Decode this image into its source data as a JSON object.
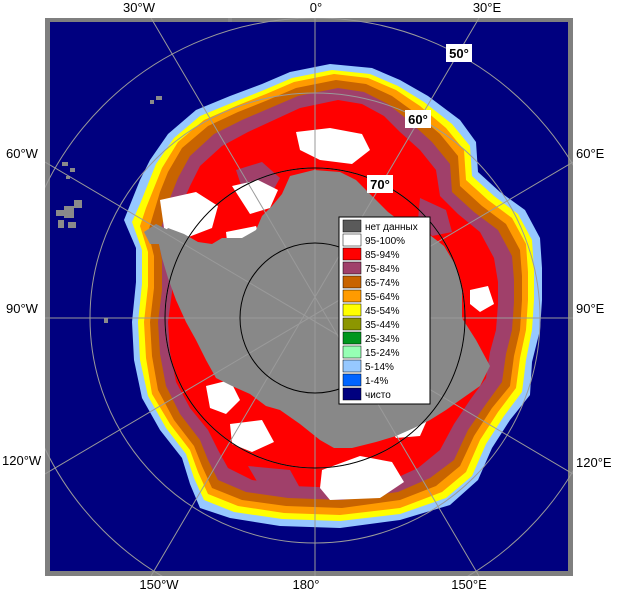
{
  "map": {
    "longitude_labels": {
      "top_left": "30°W",
      "top_center": "0°",
      "top_right": "30°E",
      "left_upper": "60°W",
      "left_middle": "90°W",
      "left_lower": "120°W",
      "right_upper": "60°E",
      "right_middle": "90°E",
      "right_lower": "120°E",
      "bottom_left": "150°W",
      "bottom_center": "180°",
      "bottom_right": "150°E"
    },
    "latitude_labels": [
      "50°",
      "60°",
      "70°"
    ]
  },
  "legend": {
    "items": [
      {
        "label": "нет данных",
        "color": "#5a5a5a"
      },
      {
        "label": "95-100%",
        "color": "#ffffff"
      },
      {
        "label": "85-94%",
        "color": "#ff0000"
      },
      {
        "label": "75-84%",
        "color": "#a0406a"
      },
      {
        "label": "65-74%",
        "color": "#c86400"
      },
      {
        "label": "55-64%",
        "color": "#ff9b00"
      },
      {
        "label": "45-54%",
        "color": "#ffff00"
      },
      {
        "label": "35-44%",
        "color": "#8c9600"
      },
      {
        "label": "25-34%",
        "color": "#00961e"
      },
      {
        "label": "15-24%",
        "color": "#96ffb4"
      },
      {
        "label": "5-14%",
        "color": "#96c8ff"
      },
      {
        "label": "1-4%",
        "color": "#0064ff"
      },
      {
        "label": "чисто",
        "color": "#00007f"
      }
    ]
  },
  "colors": {
    "ocean": "#00007f",
    "land": "#888888",
    "frame": "#7f7f7f",
    "no_data_dots": "#8a8a8a",
    "grid": "#9a9a9a"
  }
}
